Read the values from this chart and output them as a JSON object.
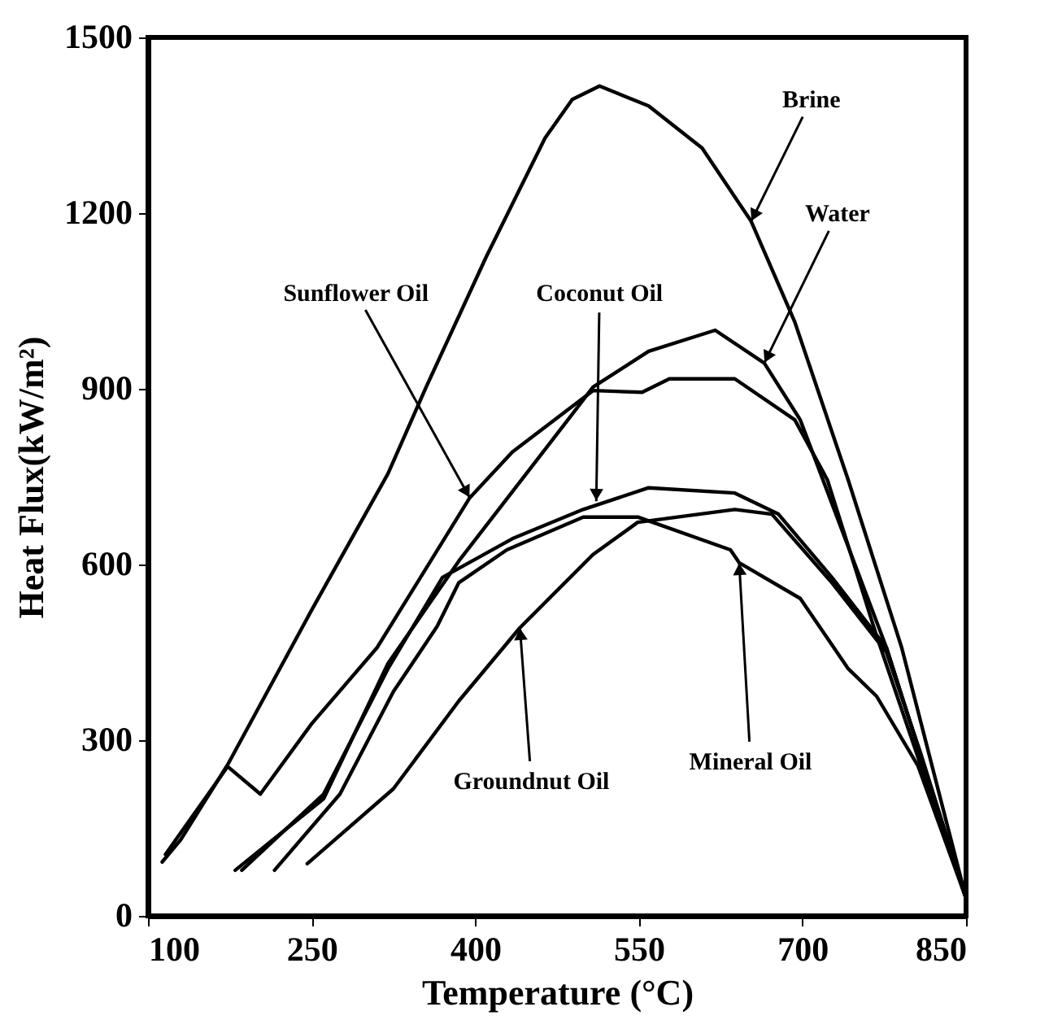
{
  "chart_data": {
    "type": "line",
    "xlabel": "Temperature (°C)",
    "ylabel": "Heat Flux(kW/m²)",
    "xlim": [
      100,
      850
    ],
    "xticks": [
      100,
      250,
      400,
      550,
      700,
      850
    ],
    "ylim": [
      0,
      1500
    ],
    "yticks": [
      0,
      300,
      600,
      900,
      1200,
      1500
    ],
    "grid": false,
    "legend": false,
    "series": [
      {
        "color": "#000000",
        "x": [
          113,
          130,
          173,
          250,
          320,
          355,
          410,
          464,
          489,
          514,
          559,
          608,
          653,
          693,
          742,
          791,
          850
        ],
        "values": [
          92,
          130,
          258,
          522,
          755,
          903,
          1125,
          1328,
          1394,
          1417,
          1383,
          1311,
          1186,
          1014,
          744,
          458,
          30
        ]
      },
      {
        "color": "#000000",
        "x": [
          180,
          261,
          320,
          385,
          485,
          508,
          559,
          620,
          665,
          698,
          777,
          850
        ],
        "values": [
          78,
          200,
          431,
          606,
          847,
          903,
          964,
          1000,
          944,
          847,
          458,
          30
        ]
      },
      {
        "color": "#000000",
        "x": [
          116,
          173,
          203,
          250,
          310,
          395,
          434,
          508,
          553,
          578,
          638,
          693,
          723,
          768,
          850
        ],
        "values": [
          105,
          255,
          208,
          328,
          458,
          714,
          792,
          897,
          894,
          917,
          917,
          847,
          744,
          478,
          30
        ]
      },
      {
        "color": "#000000",
        "x": [
          186,
          261,
          320,
          370,
          434,
          499,
          559,
          638,
          678,
          727,
          777,
          850
        ],
        "values": [
          78,
          208,
          422,
          578,
          644,
          694,
          731,
          722,
          686,
          578,
          458,
          30
        ]
      },
      {
        "color": "#000000",
        "x": [
          246,
          325,
          385,
          441,
          508,
          549,
          638,
          672,
          727,
          777,
          808,
          850
        ],
        "values": [
          89,
          217,
          367,
          492,
          617,
          672,
          694,
          686,
          569,
          450,
          280,
          30
        ]
      },
      {
        "color": "#000000",
        "x": [
          216,
          276,
          325,
          365,
          385,
          429,
          499,
          549,
          634,
          642,
          698,
          742,
          768,
          806,
          850
        ],
        "values": [
          78,
          208,
          383,
          494,
          569,
          625,
          681,
          681,
          625,
          603,
          542,
          422,
          375,
          256,
          30
        ]
      }
    ],
    "annotations": [
      {
        "text": "Brine",
        "x": 653,
        "y": 1186
      },
      {
        "text": "Water",
        "x": 665,
        "y": 944
      },
      {
        "text": "Sunflower Oil",
        "x": 395,
        "y": 714
      },
      {
        "text": "Coconut Oil",
        "x": 511,
        "y": 708
      },
      {
        "text": "Groundnut Oil",
        "x": 441,
        "y": 492
      },
      {
        "text": "Mineral Oil",
        "x": 642,
        "y": 603
      }
    ]
  }
}
